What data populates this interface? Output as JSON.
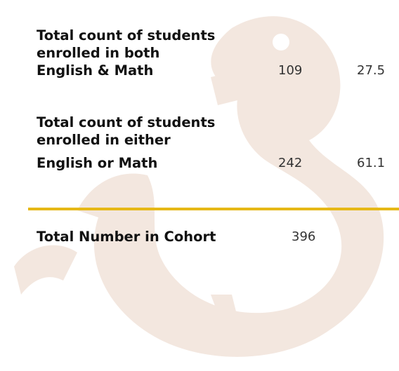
{
  "table": {
    "rows": [
      {
        "label": [
          "Total count of students",
          "enrolled in both",
          "English & Math"
        ],
        "count": "109",
        "percent": "27.5"
      },
      {
        "label": [
          "Total count of students",
          "enrolled in either",
          "English or Math"
        ],
        "count": "242",
        "percent": "61.1"
      }
    ],
    "total": {
      "label": "Total Number in Cohort",
      "count": "396"
    }
  }
}
